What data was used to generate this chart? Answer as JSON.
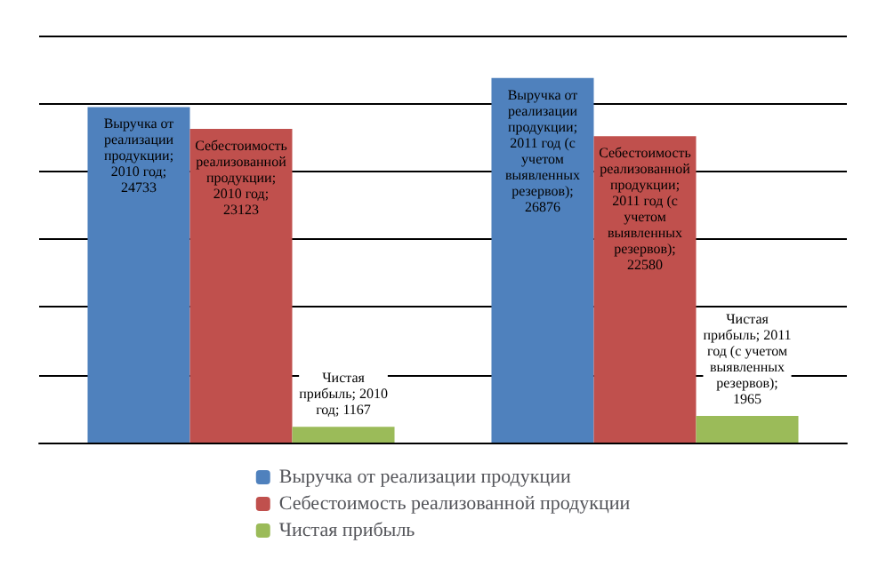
{
  "chart_data": {
    "type": "bar",
    "categories": [
      null,
      null
    ],
    "series": [
      {
        "name": "Выручка от реализации продукции",
        "color": "#4f81bd",
        "values": [
          24733,
          26876
        ],
        "value_labels": [
          "Выручка от реализации продукции; 2010 год; 24733",
          "Выручка от реализации продукции; 2011 год (с учетом выявленных резервов); 26876"
        ]
      },
      {
        "name": "Себестоимость реализованной продукции",
        "color": "#c0504d",
        "values": [
          23123,
          22580
        ],
        "value_labels": [
          "Себестоимость реализованной продукции; 2010 год; 23123",
          "Себестоимость реализованной продукции; 2011 год (с учетом выявленных резервов); 22580"
        ]
      },
      {
        "name": "Чистая прибыль",
        "color": "#9bbb59",
        "values": [
          1167,
          1965
        ],
        "value_labels": [
          "Чистая прибыль; 2010 год; 1167",
          "Чистая прибыль; 2011 год (с учетом выявленных резервов); 1965"
        ]
      }
    ],
    "tick_labels": false,
    "grid": "y",
    "legend": "bottom"
  }
}
